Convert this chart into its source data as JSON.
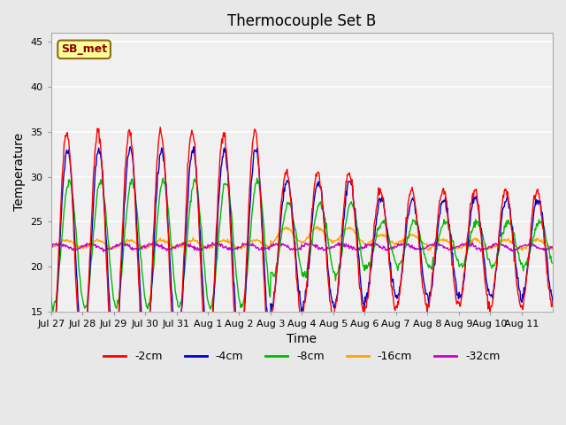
{
  "title": "Thermocouple Set B",
  "xlabel": "Time",
  "ylabel": "Temperature",
  "ylim": [
    15,
    46
  ],
  "yticks": [
    15,
    20,
    25,
    30,
    35,
    40,
    45
  ],
  "annotation_text": "SB_met",
  "annotation_color": "#8B0000",
  "annotation_bg": "#FFFF99",
  "annotation_border": "#8B6914",
  "series_colors": {
    "-2cm": "#FF0000",
    "-4cm": "#0000CC",
    "-8cm": "#00BB00",
    "-16cm": "#FFA500",
    "-32cm": "#CC00CC"
  },
  "legend_labels": [
    "-2cm",
    "-4cm",
    "-8cm",
    "-16cm",
    "-32cm"
  ],
  "x_tick_labels": [
    "Jul 27",
    "Jul 28",
    "Jul 29",
    "Jul 30",
    "Jul 31",
    "Aug 1",
    "Aug 2",
    "Aug 3",
    "Aug 4",
    "Aug 5",
    "Aug 6",
    "Aug 7",
    "Aug 8",
    "Aug 9",
    "Aug 10",
    "Aug 11"
  ],
  "n_days": 16,
  "bg_color": "#E8E8E8",
  "plot_bg_color": "#F0F0F0",
  "grid_color": "#FFFFFF"
}
